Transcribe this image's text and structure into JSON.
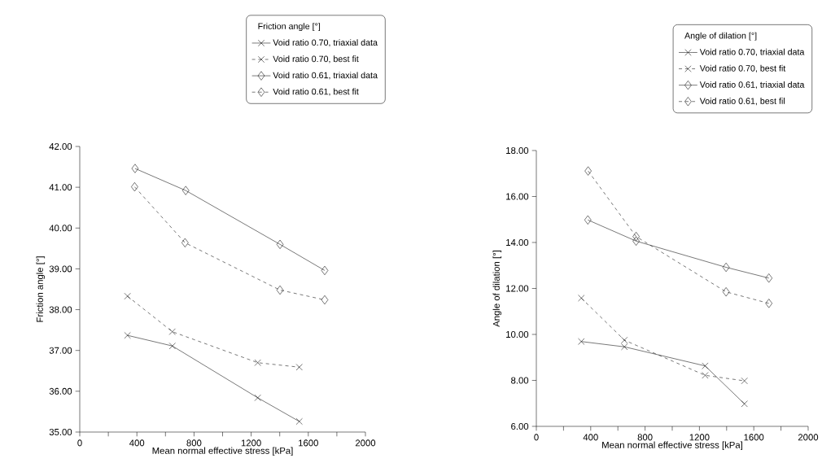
{
  "chart_data": [
    {
      "type": "line",
      "xlabel": "Mean normal effective stress [kPa]",
      "ylabel": "Friction angle [°]",
      "legend_title": "Friction angle [°]",
      "legend": "top right",
      "xlim": [
        0,
        2000
      ],
      "ylim": [
        35,
        42
      ],
      "xticks": [
        0,
        {
          "value": 200,
          "label": null
        },
        400,
        {
          "value": 600,
          "label": null
        },
        800,
        {
          "value": 1000,
          "label": null
        },
        1200,
        {
          "value": 1400,
          "label": null
        },
        1600,
        {
          "value": 1800,
          "label": null
        },
        2000
      ],
      "yticks": [
        {
          "value": 35,
          "label": "35.00"
        },
        {
          "value": 36,
          "label": "36.00"
        },
        {
          "value": 37,
          "label": "37.00"
        },
        {
          "value": 38,
          "label": "38.00"
        },
        {
          "value": 39,
          "label": "39.00"
        },
        {
          "value": 40,
          "label": "40.00"
        },
        {
          "value": 41,
          "label": "41.00"
        },
        {
          "value": 42,
          "label": "42.00"
        }
      ],
      "series": [
        {
          "name": "Void ratio 0.70, triaxial data",
          "color": "#000000",
          "marker": "cross",
          "line_style": "solid",
          "x": [
            334,
            648,
            1246,
            1537
          ],
          "values": [
            37.37,
            37.11,
            35.84,
            35.26
          ]
        },
        {
          "name": "Void ratio 0.70, best fit",
          "color": "#000000",
          "marker": "cross",
          "line_style": "dashed",
          "x": [
            334,
            648,
            1246,
            1537
          ],
          "values": [
            38.33,
            37.46,
            36.7,
            36.59
          ]
        },
        {
          "name": "Void ratio 0.61, triaxial data",
          "color": "#000000",
          "marker": "diamond",
          "line_style": "solid",
          "x": [
            387,
            742,
            1402,
            1715
          ],
          "values": [
            41.46,
            40.92,
            39.6,
            38.96
          ]
        },
        {
          "name": "Void ratio 0.61, best fit",
          "color": "#000000",
          "marker": "diamond",
          "line_style": "dashed",
          "x": [
            384,
            737,
            1402,
            1715
          ],
          "values": [
            41.01,
            39.64,
            38.48,
            38.24
          ]
        }
      ]
    },
    {
      "type": "line",
      "xlabel": "Mean normal effective stress [kPa]",
      "ylabel": "Angle of dilation [°]",
      "legend_title": "Angle of dilation [°]",
      "legend": "top right",
      "xlim": [
        0,
        2000
      ],
      "ylim": [
        6,
        18
      ],
      "xticks": [
        0,
        {
          "value": 200,
          "label": null
        },
        400,
        {
          "value": 600,
          "label": null
        },
        800,
        {
          "value": 1000,
          "label": null
        },
        1200,
        {
          "value": 1400,
          "label": null
        },
        1600,
        {
          "value": 1800,
          "label": null
        },
        2000
      ],
      "yticks": [
        {
          "value": 6,
          "label": "6.00"
        },
        {
          "value": 8,
          "label": "8.00"
        },
        {
          "value": 10,
          "label": "10.00"
        },
        {
          "value": 12,
          "label": "12.00"
        },
        {
          "value": 14,
          "label": "14.00"
        },
        {
          "value": 16,
          "label": "16.00"
        },
        {
          "value": 18,
          "label": "18.00"
        }
      ],
      "series": [
        {
          "name": "Void ratio 0.70, triaxial data",
          "color": "#000000",
          "marker": "cross",
          "line_style": "solid",
          "x": [
            331,
            648,
            1242,
            1531
          ],
          "values": [
            9.69,
            9.46,
            8.63,
            6.98
          ]
        },
        {
          "name": "Void ratio 0.70, best fit",
          "color": "#000000",
          "marker": "cross",
          "line_style": "dashed",
          "x": [
            331,
            648,
            1242,
            1531
          ],
          "values": [
            11.58,
            9.75,
            8.22,
            7.98
          ]
        },
        {
          "name": "Void ratio 0.61, triaxial data",
          "color": "#000000",
          "marker": "diamond",
          "line_style": "solid",
          "x": [
            379,
            734,
            1396,
            1711
          ],
          "values": [
            14.98,
            14.06,
            12.92,
            12.45
          ]
        },
        {
          "name": "Void ratio 0.61, best fil",
          "color": "#000000",
          "marker": "diamond",
          "line_style": "dashed",
          "x": [
            381,
            734,
            1396,
            1711
          ],
          "values": [
            17.11,
            14.26,
            11.85,
            11.35
          ]
        }
      ]
    }
  ]
}
